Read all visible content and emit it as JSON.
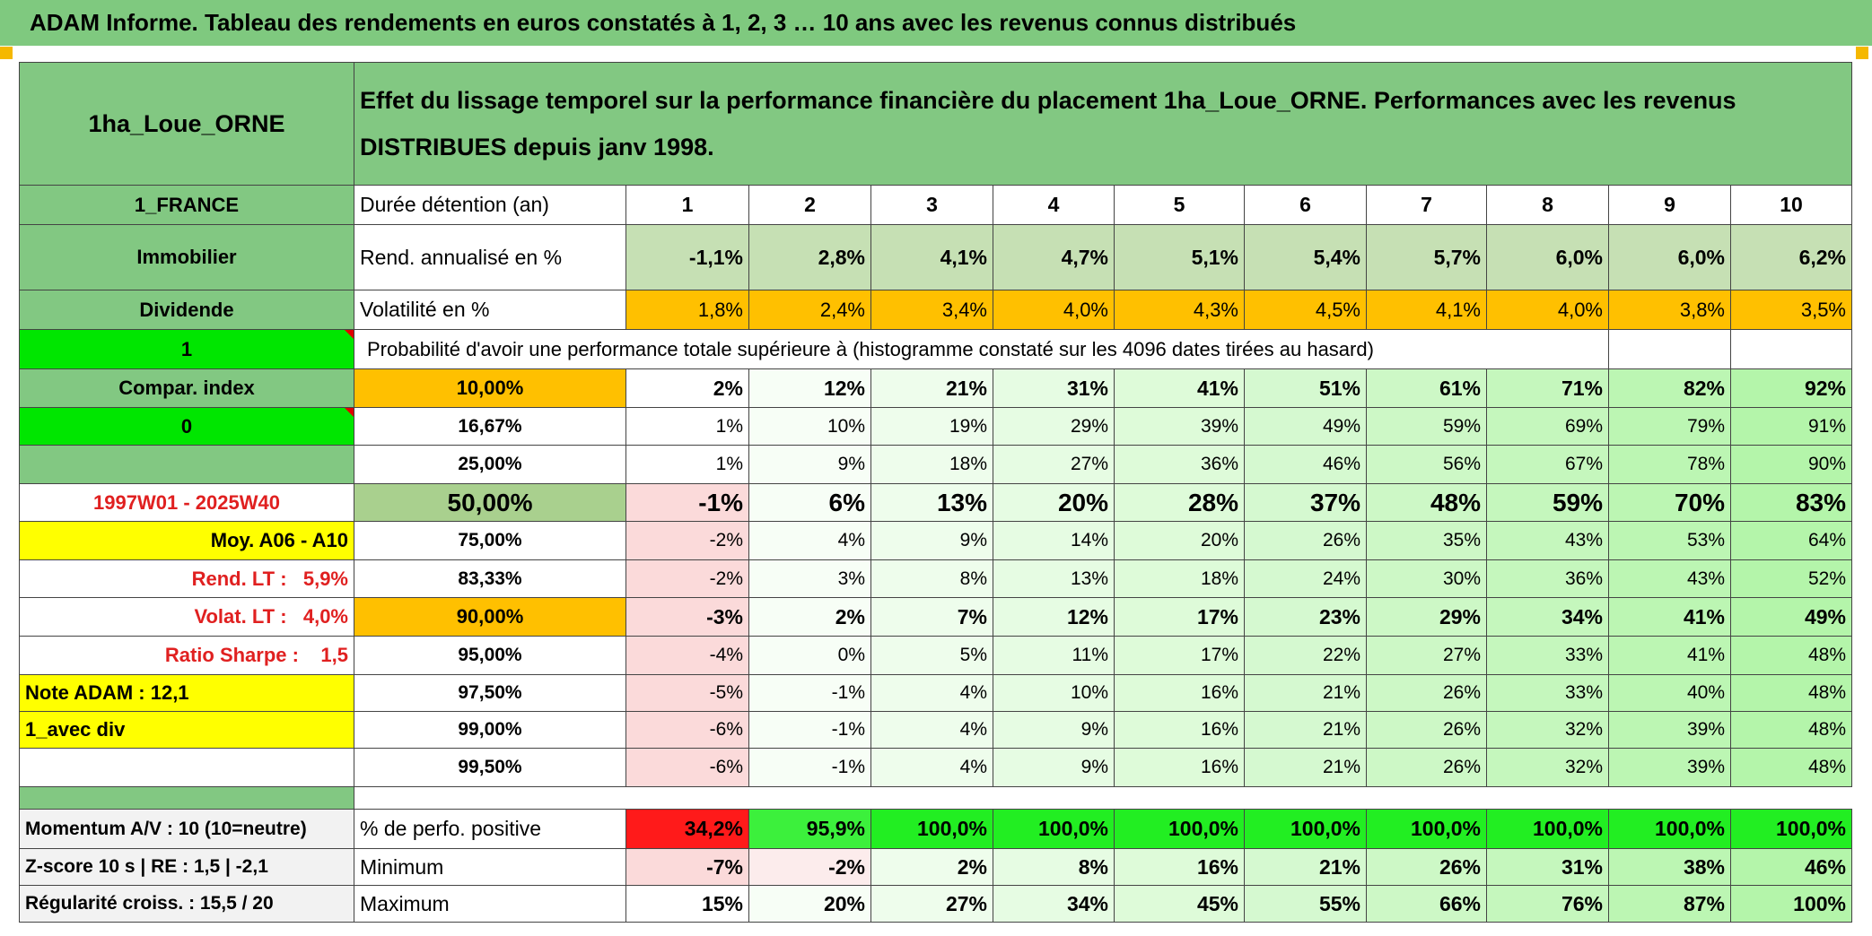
{
  "header": {
    "title": "ADAM Informe. Tableau des rendements en euros constatés à 1, 2, 3 … 10 ans avec les revenus connus distribués"
  },
  "table": {
    "name": "1ha_Loue_ORNE",
    "description": "Effet du lissage temporel sur la performance financière du placement 1ha_Loue_ORNE. Performances avec les revenus DISTRIBUES depuis janv 1998.",
    "rows": [
      {
        "side": "1_FRANCE",
        "label": "Durée détention (an)",
        "cells": [
          "1",
          "2",
          "3",
          "4",
          "5",
          "6",
          "7",
          "8",
          "9",
          "10"
        ]
      },
      {
        "side": "Immobilier",
        "label": "Rend. annualisé en %",
        "cells": [
          "-1,1%",
          "2,8%",
          "4,1%",
          "4,7%",
          "5,1%",
          "5,4%",
          "5,7%",
          "6,0%",
          "6,0%",
          "6,2%"
        ]
      },
      {
        "side": "Dividende",
        "label": "Volatilité en %",
        "cells": [
          "1,8%",
          "2,4%",
          "3,4%",
          "4,0%",
          "4,3%",
          "4,5%",
          "4,1%",
          "4,0%",
          "3,8%",
          "3,5%"
        ]
      },
      {
        "side": "1",
        "label": "Probabilité d'avoir une performance totale supérieure à (histogramme constaté sur les 4096 dates tirées au hasard)"
      },
      {
        "side": "Compar. index",
        "label": "10,00%",
        "cells": [
          "2%",
          "12%",
          "21%",
          "31%",
          "41%",
          "51%",
          "61%",
          "71%",
          "82%",
          "92%"
        ]
      },
      {
        "side": "0",
        "label": "16,67%",
        "cells": [
          "1%",
          "10%",
          "19%",
          "29%",
          "39%",
          "49%",
          "59%",
          "69%",
          "79%",
          "91%"
        ]
      },
      {
        "label": "25,00%",
        "cells": [
          "1%",
          "9%",
          "18%",
          "27%",
          "36%",
          "46%",
          "56%",
          "67%",
          "78%",
          "90%"
        ]
      },
      {
        "side": "1997W01 - 2025W40",
        "label": "50,00%",
        "cells": [
          "-1%",
          "6%",
          "13%",
          "20%",
          "28%",
          "37%",
          "48%",
          "59%",
          "70%",
          "83%"
        ]
      },
      {
        "side": "Moy. A06 - A10",
        "label": "75,00%",
        "cells": [
          "-2%",
          "4%",
          "9%",
          "14%",
          "20%",
          "26%",
          "35%",
          "43%",
          "53%",
          "64%"
        ]
      },
      {
        "side": "Rend. LT :   5,9%",
        "label": "83,33%",
        "cells": [
          "-2%",
          "3%",
          "8%",
          "13%",
          "18%",
          "24%",
          "30%",
          "36%",
          "43%",
          "52%"
        ]
      },
      {
        "side": "Volat. LT :   4,0%",
        "label": "90,00%",
        "cells": [
          "-3%",
          "2%",
          "7%",
          "12%",
          "17%",
          "23%",
          "29%",
          "34%",
          "41%",
          "49%"
        ]
      },
      {
        "side": "Ratio Sharpe :    1,5",
        "label": "95,00%",
        "cells": [
          "-4%",
          "0%",
          "5%",
          "11%",
          "17%",
          "22%",
          "27%",
          "33%",
          "41%",
          "48%"
        ]
      },
      {
        "side": "Note ADAM : 12,1",
        "label": "97,50%",
        "cells": [
          "-5%",
          "-1%",
          "4%",
          "10%",
          "16%",
          "21%",
          "26%",
          "33%",
          "40%",
          "48%"
        ]
      },
      {
        "side": "1_avec div",
        "label": "99,00%",
        "cells": [
          "-6%",
          "-1%",
          "4%",
          "9%",
          "16%",
          "21%",
          "26%",
          "32%",
          "39%",
          "48%"
        ]
      },
      {
        "label": "99,50%",
        "cells": [
          "-6%",
          "-1%",
          "4%",
          "9%",
          "16%",
          "21%",
          "26%",
          "32%",
          "39%",
          "48%"
        ]
      },
      {
        "side": "Momentum A/V : 10 (10=neutre)",
        "label": "% de perfo. positive",
        "cells": [
          "34,2%",
          "95,9%",
          "100,0%",
          "100,0%",
          "100,0%",
          "100,0%",
          "100,0%",
          "100,0%",
          "100,0%",
          "100,0%"
        ]
      },
      {
        "side": "Z-score 10 s | RE : 1,5 | -2,1",
        "label": "Minimum",
        "cells": [
          "-7%",
          "-2%",
          "2%",
          "8%",
          "16%",
          "21%",
          "26%",
          "31%",
          "38%",
          "46%"
        ]
      },
      {
        "side": "Régularité croiss. : 15,5 / 20",
        "label": "Maximum",
        "cells": [
          "15%",
          "20%",
          "27%",
          "34%",
          "45%",
          "55%",
          "66%",
          "76%",
          "87%",
          "100%"
        ]
      }
    ]
  }
}
